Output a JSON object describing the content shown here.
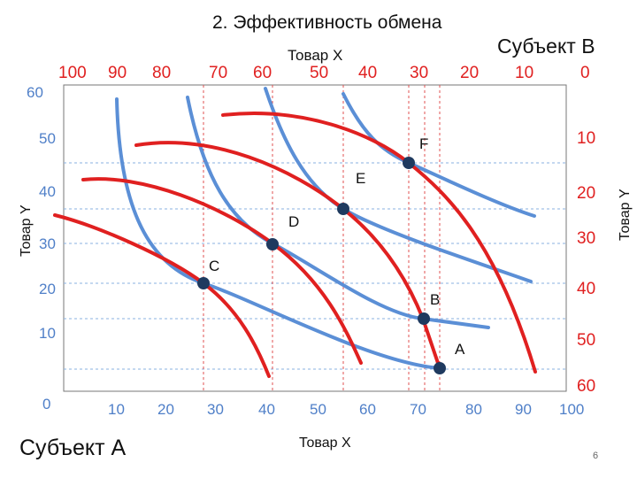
{
  "title": "2. Эффективность обмена",
  "top": {
    "good_label": "Товар X",
    "subject_label": "Субъект B",
    "ticks": [
      "100",
      "90",
      "80",
      "70",
      "60",
      "50",
      "40",
      "30",
      "20",
      "10",
      "0"
    ]
  },
  "left": {
    "good_label": "Товар Y",
    "ticks": [
      "60",
      "50",
      "40",
      "30",
      "20",
      "10",
      "0"
    ]
  },
  "right": {
    "good_label": "Товар Y",
    "ticks": [
      "10",
      "20",
      "30",
      "40",
      "50",
      "60"
    ]
  },
  "bottom": {
    "good_label": "Товар X",
    "subject_label": "Субъект A",
    "ticks": [
      "10",
      "20",
      "30",
      "40",
      "50",
      "60",
      "70",
      "80",
      "90",
      "100"
    ]
  },
  "points": [
    "A",
    "B",
    "C",
    "D",
    "E",
    "F"
  ],
  "page_number": "6",
  "colors": {
    "subject_a_curves": "#5b8fd6",
    "subject_b_curves": "#e02020",
    "points": "#1f3a5f",
    "tick_red": "#e02020",
    "grid": "#8ab0e0"
  }
}
